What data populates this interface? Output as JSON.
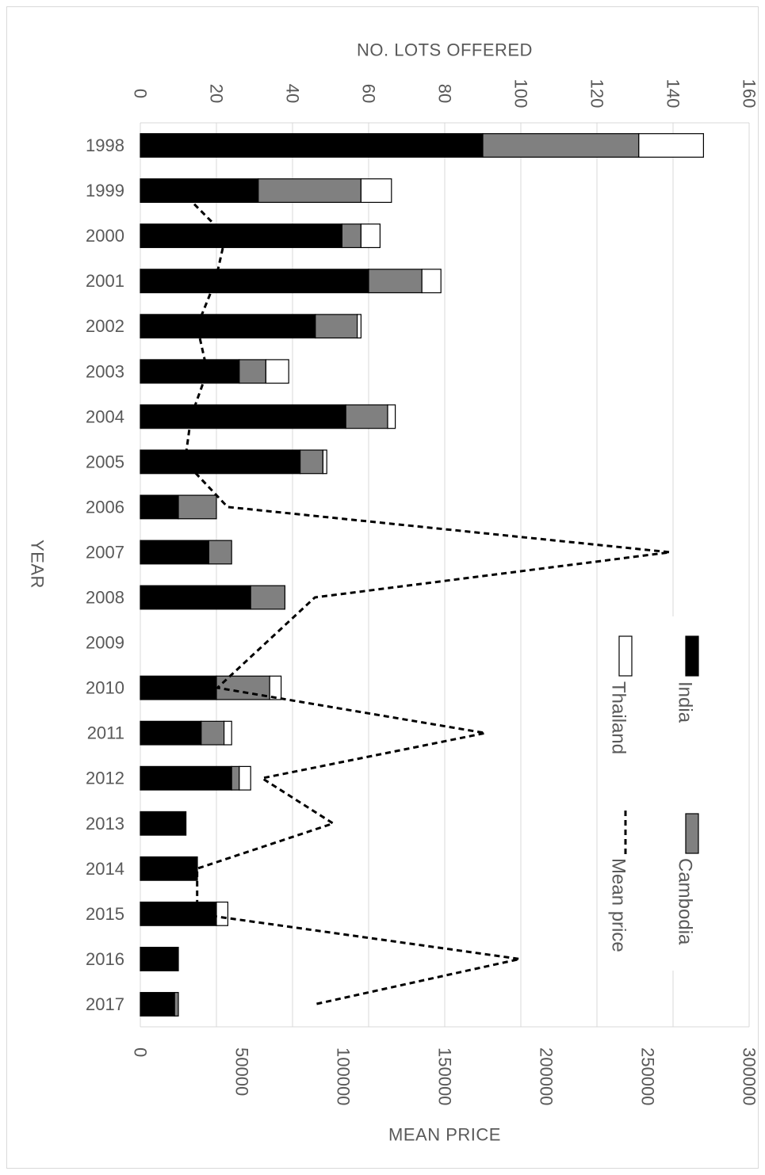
{
  "chart_data": {
    "type": "bar",
    "orientation": "horizontal",
    "stacked": true,
    "categories": [
      "1998",
      "1999",
      "2000",
      "2001",
      "2002",
      "2003",
      "2004",
      "2005",
      "2006",
      "2007",
      "2008",
      "2009",
      "2010",
      "2011",
      "2012",
      "2013",
      "2014",
      "2015",
      "2016",
      "2017"
    ],
    "series": [
      {
        "name": "India",
        "color": "#000000",
        "values": [
          90,
          31,
          53,
          60,
          46,
          26,
          54,
          42,
          10,
          18,
          29,
          0,
          20,
          16,
          24,
          12,
          15,
          20,
          10,
          9
        ]
      },
      {
        "name": "Cambodia",
        "color": "#808080",
        "values": [
          41,
          27,
          5,
          14,
          11,
          7,
          11,
          6,
          10,
          6,
          9,
          0,
          14,
          6,
          2,
          0,
          0,
          0,
          0,
          1
        ]
      },
      {
        "name": "Thailand",
        "color": "#ffffff",
        "values": [
          17,
          8,
          5,
          5,
          1,
          6,
          2,
          1,
          0,
          0,
          0,
          0,
          3,
          2,
          3,
          0,
          0,
          3,
          0,
          0
        ]
      }
    ],
    "line_series": {
      "name": "Mean price",
      "style": "dashed",
      "points": [
        {
          "category": "1999",
          "value": 20000
        },
        {
          "category": "2000",
          "value": 42000
        },
        {
          "category": "2001",
          "value": 37000
        },
        {
          "category": "2002",
          "value": 28000
        },
        {
          "category": "2003",
          "value": 33000
        },
        {
          "category": "2004",
          "value": 25000
        },
        {
          "category": "2005",
          "value": 22000
        },
        {
          "category": "2006",
          "value": 43000
        },
        {
          "category": "2007",
          "value": 261000
        },
        {
          "category": "2008",
          "value": 86000
        },
        {
          "category": "2010",
          "value": 38000
        },
        {
          "category": "2011",
          "value": 170000
        },
        {
          "category": "2012",
          "value": 60000
        },
        {
          "category": "2013",
          "value": 95000
        },
        {
          "category": "2014",
          "value": 28000
        },
        {
          "category": "2015",
          "value": 28000
        },
        {
          "category": "2016",
          "value": 187000
        },
        {
          "category": "2017",
          "value": 86000
        }
      ]
    },
    "lots_axis": {
      "title": "NO. LOTS OFFERED",
      "min": 0,
      "max": 160,
      "ticks": [
        "0",
        "20",
        "40",
        "60",
        "80",
        "100",
        "120",
        "140",
        "160"
      ]
    },
    "price_axis": {
      "title": "MEAN PRICE",
      "min": 0,
      "max": 300000,
      "ticks": [
        "0",
        "50000",
        "100000",
        "150000",
        "200000",
        "250000",
        "300000"
      ]
    },
    "category_axis": {
      "title": "YEAR"
    },
    "grid": true,
    "legend": {
      "position": "right, inside plot",
      "entries": [
        {
          "label": "India",
          "kind": "bar",
          "color": "#000000"
        },
        {
          "label": "Cambodia",
          "kind": "bar",
          "color": "#808080"
        },
        {
          "label": "Thailand",
          "kind": "bar",
          "color": "#ffffff"
        },
        {
          "label": "Mean price",
          "kind": "line",
          "color": "#000000"
        }
      ]
    }
  }
}
